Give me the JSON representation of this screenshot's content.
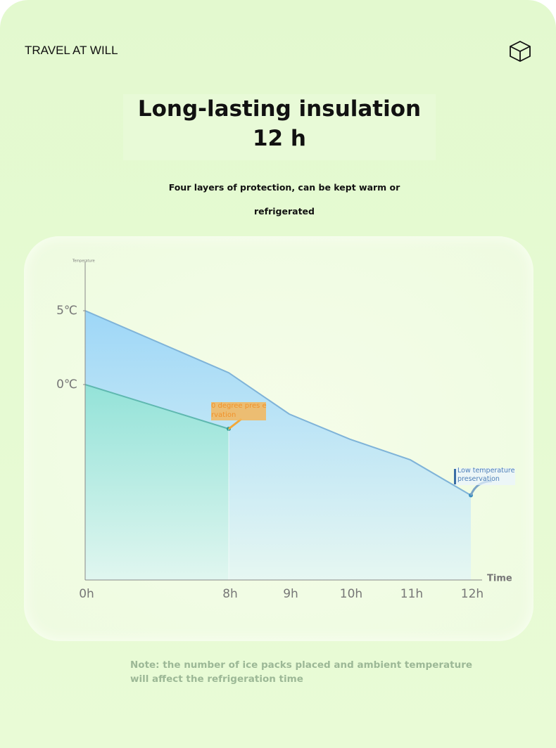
{
  "header": {
    "brand": "TRAVEL AT WILL",
    "title": "Long-lasting insulation 12 h",
    "subtitle": "Four layers of protection, can be kept warm or refrigerated"
  },
  "chart_data": {
    "type": "line",
    "y_label": "Temperature",
    "x_label": "Time",
    "categories": [
      "0h",
      "8h",
      "9h",
      "10h",
      "11h",
      "12h"
    ],
    "series": [
      {
        "name": "Low temperature preservation",
        "color": "#7fb3d8",
        "values": [
          5,
          0.8,
          -2,
          -3.7,
          -5.1,
          -7.5
        ]
      },
      {
        "name": "0 degree pres ervation",
        "color": "#5fb8b0",
        "values": [
          0,
          -3,
          null,
          null,
          null,
          null
        ]
      }
    ],
    "ylim": [
      -13,
      8
    ],
    "yticks": [
      {
        "value": 5,
        "label": "5℃"
      },
      {
        "value": 0,
        "label": "0℃"
      }
    ]
  },
  "note": "Note: the number of ice packs placed and ambient temperature will affect the refrigeration time"
}
